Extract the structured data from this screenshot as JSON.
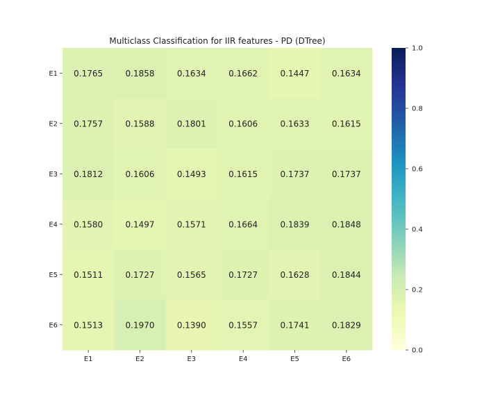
{
  "chart_data": {
    "type": "heatmap",
    "title": "Multiclass Classification for IIR features - PD (DTree)",
    "xlabel": "",
    "ylabel": "",
    "x_categories": [
      "E1",
      "E2",
      "E3",
      "E4",
      "E5",
      "E6"
    ],
    "y_categories": [
      "E1",
      "E2",
      "E3",
      "E4",
      "E5",
      "E6"
    ],
    "values": [
      [
        0.1765,
        0.1858,
        0.1634,
        0.1662,
        0.1447,
        0.1634
      ],
      [
        0.1757,
        0.1588,
        0.1801,
        0.1606,
        0.1633,
        0.1615
      ],
      [
        0.1812,
        0.1606,
        0.1493,
        0.1615,
        0.1737,
        0.1737
      ],
      [
        0.158,
        0.1497,
        0.1571,
        0.1664,
        0.1839,
        0.1848
      ],
      [
        0.1511,
        0.1727,
        0.1565,
        0.1727,
        0.1628,
        0.1844
      ],
      [
        0.1513,
        0.197,
        0.139,
        0.1557,
        0.1741,
        0.1829
      ]
    ],
    "value_labels": [
      [
        "0.1765",
        "0.1858",
        "0.1634",
        "0.1662",
        "0.1447",
        "0.1634"
      ],
      [
        "0.1757",
        "0.1588",
        "0.1801",
        "0.1606",
        "0.1633",
        "0.1615"
      ],
      [
        "0.1812",
        "0.1606",
        "0.1493",
        "0.1615",
        "0.1737",
        "0.1737"
      ],
      [
        "0.1580",
        "0.1497",
        "0.1571",
        "0.1664",
        "0.1839",
        "0.1848"
      ],
      [
        "0.1511",
        "0.1727",
        "0.1565",
        "0.1727",
        "0.1628",
        "0.1844"
      ],
      [
        "0.1513",
        "0.1970",
        "0.1390",
        "0.1557",
        "0.1741",
        "0.1829"
      ]
    ],
    "colorbar": {
      "range": [
        0.0,
        1.0
      ],
      "ticks": [
        0.0,
        0.2,
        0.4,
        0.6,
        0.8,
        1.0
      ],
      "tick_labels": [
        "0.0",
        "0.2",
        "0.4",
        "0.6",
        "0.8",
        "1.0"
      ],
      "colormap": "YlGnBu"
    },
    "grid": false
  }
}
